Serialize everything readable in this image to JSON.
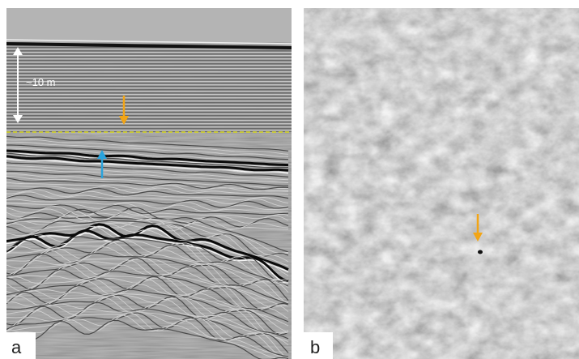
{
  "panel_a": {
    "label": "a",
    "scale_label": "~10 m"
  },
  "panel_b": {
    "label": "b"
  }
}
